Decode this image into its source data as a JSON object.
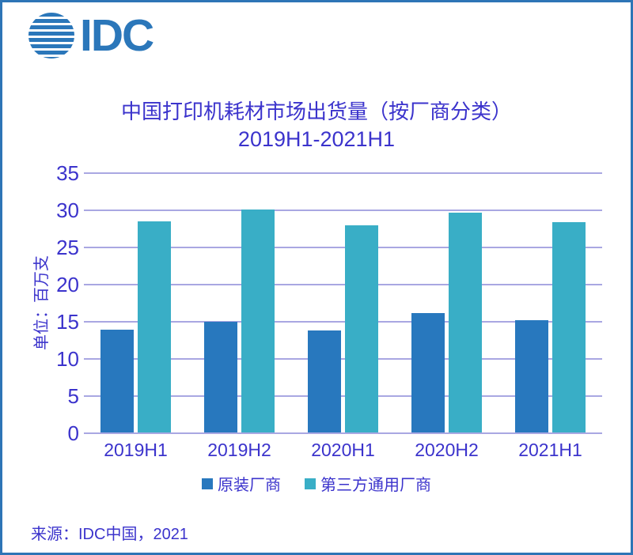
{
  "logo": {
    "text": "IDC",
    "icon": "striped-globe-icon"
  },
  "title": {
    "line1": "中国打印机耗材市场出货量（按厂商分类）",
    "line2": "2019H1-2021H1"
  },
  "source": {
    "text": "来源：IDC中国，2021"
  },
  "colors": {
    "series1": "#2878BE",
    "series2": "#39AEC6",
    "text": "#3B33CC",
    "grid": "#A9A7E2",
    "border": "#2E75B6",
    "logo": "#2B77BA"
  },
  "chart_data": {
    "type": "bar",
    "title": "中国打印机耗材市场出货量（按厂商分类）",
    "subtitle": "2019H1-2021H1",
    "categories": [
      "2019H1",
      "2019H2",
      "2020H1",
      "2020H2",
      "2021H1"
    ],
    "series": [
      {
        "name": "原装厂商",
        "color": "#2878BE",
        "values": [
          13.9,
          15.0,
          13.8,
          16.2,
          15.2
        ]
      },
      {
        "name": "第三方通用厂商",
        "color": "#39AEC6",
        "values": [
          28.5,
          30.1,
          28.0,
          29.7,
          28.4
        ]
      }
    ],
    "xlabel": "",
    "ylabel": "单位：百万支",
    "ylim": [
      0,
      35
    ],
    "ytick_step": 5,
    "grid": true,
    "legend_position": "bottom"
  }
}
